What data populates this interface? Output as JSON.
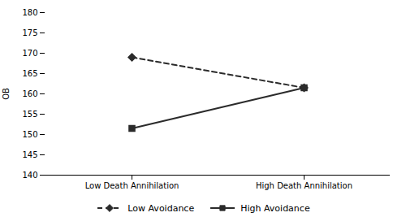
{
  "chart_data": {
    "type": "line",
    "categories": [
      "Low Death Annihilation",
      "High Death Annihilation"
    ],
    "series": [
      {
        "name": "Low Avoidance",
        "color": "#2b2b2b",
        "values": [
          169.0,
          161.5
        ],
        "line_style": "dashed",
        "marker": "diamond"
      },
      {
        "name": "High Avoidance",
        "color": "#2b2b2b",
        "values": [
          151.5,
          161.5
        ],
        "line_style": "solid",
        "marker": "square"
      }
    ],
    "ylabel": "OB",
    "ylim": [
      140,
      180
    ],
    "yticks": [
      140,
      145,
      150,
      155,
      160,
      165,
      170,
      175,
      180
    ],
    "grid": false,
    "legend": "bottom"
  }
}
